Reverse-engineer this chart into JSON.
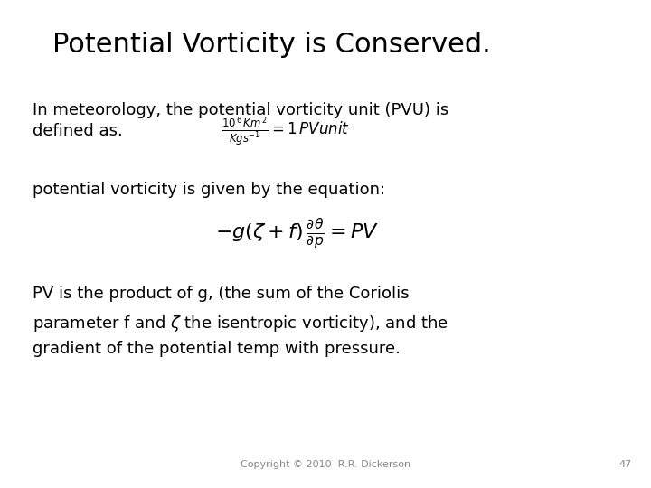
{
  "title": "Potential Vorticity is Conserved.",
  "title_fontsize": 22,
  "background_color": "#ffffff",
  "text_color": "#000000",
  "body_fontsize": 13,
  "eq1_fontsize": 11,
  "eq2_fontsize": 16,
  "footer_fontsize": 8,
  "line1": "In meteorology, the potential vorticity unit (PVU) is",
  "line2": "defined as.",
  "line3": "potential vorticity is given by the equation:",
  "line4a": "PV is the product of g, (the sum of the Coriolis",
  "line4b": "parameter f and $\\zeta$ the isentropic vorticity), and the",
  "line4c": "gradient of the potential temp with pressure.",
  "footer": "Copyright © 2010  R.R. Dickerson",
  "page_number": "47",
  "footer_color": "#888888"
}
